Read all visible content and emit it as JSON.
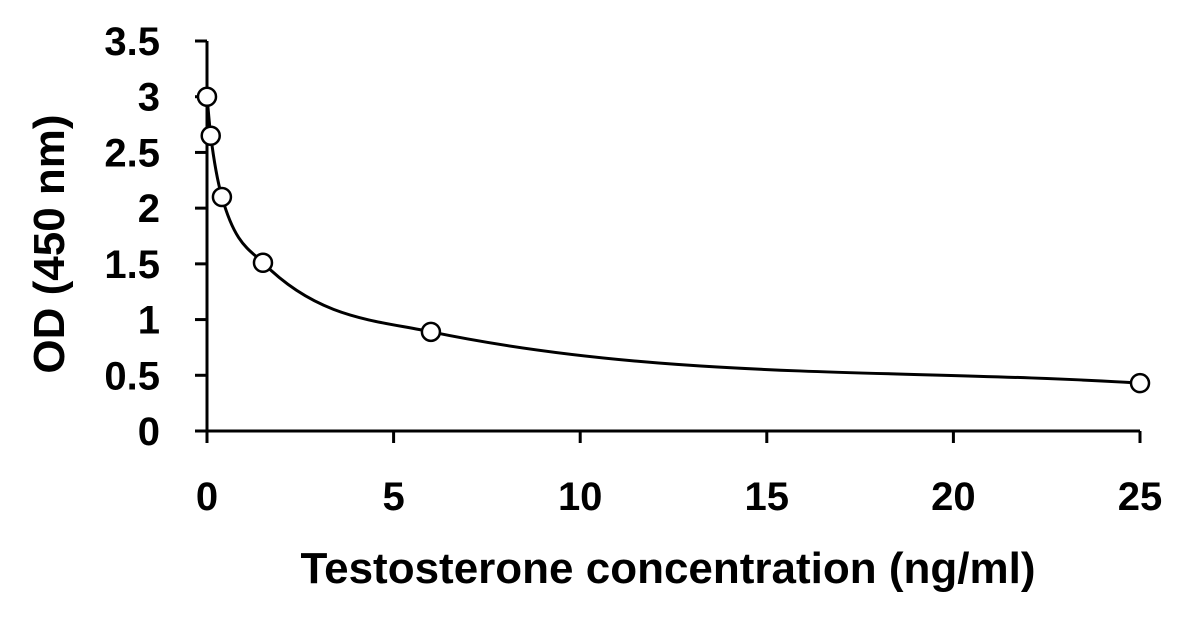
{
  "chart_data": {
    "type": "scatter",
    "xlabel": "Testosterone concentration (ng/ml)",
    "ylabel": "OD (450 nm)",
    "xlim": [
      0,
      25
    ],
    "ylim": [
      0,
      3.5
    ],
    "xticks": [
      0,
      5,
      10,
      15,
      20,
      25
    ],
    "xtick_labels": [
      "0",
      "5",
      "10",
      "15",
      "20",
      "25"
    ],
    "yticks": [
      0,
      0.5,
      1,
      1.5,
      2,
      2.5,
      3,
      3.5
    ],
    "ytick_labels": [
      "0",
      "0.5",
      "1",
      "1.5",
      "2",
      "2.5",
      "3",
      "3.5"
    ],
    "grid": false,
    "legend": "none",
    "marker": "open-circle",
    "line": "smooth",
    "series": [
      {
        "x": [
          0,
          0.1,
          0.4,
          1.5,
          6,
          25
        ],
        "y": [
          3.0,
          2.65,
          2.1,
          1.51,
          0.89,
          0.43
        ]
      }
    ],
    "colors": {
      "line": "#000000",
      "marker_fill": "#ffffff",
      "marker_stroke": "#000000",
      "axis": "#000000"
    }
  }
}
